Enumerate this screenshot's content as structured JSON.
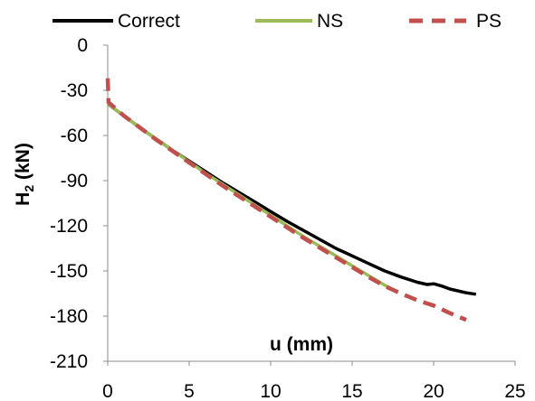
{
  "chart_data": {
    "type": "line",
    "title": "",
    "xlabel": "u (mm)",
    "ylabel_main": "H",
    "ylabel_sub": "2",
    "ylabel_unit": " (kN)",
    "xlim": [
      0,
      25
    ],
    "ylim": [
      -210,
      0
    ],
    "xticks": [
      0,
      5,
      10,
      15,
      20,
      25
    ],
    "yticks": [
      0,
      -30,
      -60,
      -90,
      -120,
      -150,
      -180,
      -210
    ],
    "xtick_labels": [
      "0",
      "5",
      "10",
      "15",
      "20",
      "25"
    ],
    "ytick_labels": [
      "0",
      "-30",
      "-60",
      "-90",
      "-120",
      "-150",
      "-180",
      "-210"
    ],
    "grid": false,
    "legend_position": "top",
    "series": [
      {
        "name": "Correct",
        "color": "#000000",
        "dash": "solid",
        "points": [
          [
            0,
            -39
          ],
          [
            1,
            -47
          ],
          [
            2,
            -55
          ],
          [
            3,
            -62.5
          ],
          [
            4,
            -70
          ],
          [
            5,
            -77
          ],
          [
            6,
            -84
          ],
          [
            7,
            -91
          ],
          [
            8,
            -97.5
          ],
          [
            9,
            -104
          ],
          [
            10,
            -110.5
          ],
          [
            11,
            -117
          ],
          [
            12,
            -123
          ],
          [
            13,
            -129
          ],
          [
            14,
            -135
          ],
          [
            15,
            -140
          ],
          [
            16,
            -145
          ],
          [
            17,
            -150
          ],
          [
            18,
            -154
          ],
          [
            19,
            -157.5
          ],
          [
            19.6,
            -159
          ],
          [
            20,
            -158.5
          ],
          [
            20.5,
            -160
          ],
          [
            21,
            -162
          ],
          [
            22,
            -164.5
          ],
          [
            22.6,
            -165.5
          ]
        ]
      },
      {
        "name": "NS",
        "color": "#9bbb59",
        "dash": "solid",
        "points": [
          [
            0,
            -39
          ],
          [
            1,
            -47
          ],
          [
            2,
            -55
          ],
          [
            3,
            -62.5
          ],
          [
            4,
            -70
          ],
          [
            5,
            -77.5
          ],
          [
            6,
            -85
          ],
          [
            7,
            -92
          ],
          [
            8,
            -99
          ],
          [
            9,
            -106
          ],
          [
            10,
            -113
          ],
          [
            11,
            -120
          ],
          [
            12,
            -127
          ],
          [
            13,
            -133.5
          ],
          [
            14,
            -140
          ],
          [
            15,
            -146.5
          ],
          [
            16,
            -153
          ],
          [
            17,
            -159.5
          ],
          [
            17.5,
            -162.5
          ]
        ]
      },
      {
        "name": "PS",
        "color": "#c0504d",
        "dash": "dashed",
        "points": [
          [
            0,
            -22
          ],
          [
            0.05,
            -38
          ],
          [
            1,
            -47
          ],
          [
            2,
            -55
          ],
          [
            3,
            -63
          ],
          [
            4,
            -70.5
          ],
          [
            5,
            -78
          ],
          [
            6,
            -85.5
          ],
          [
            7,
            -93
          ],
          [
            8,
            -100
          ],
          [
            9,
            -107
          ],
          [
            10,
            -114
          ],
          [
            11,
            -121
          ],
          [
            12,
            -128
          ],
          [
            13,
            -134.5
          ],
          [
            14,
            -141
          ],
          [
            15,
            -147.5
          ],
          [
            16,
            -154
          ],
          [
            17,
            -160
          ],
          [
            18,
            -165
          ],
          [
            19,
            -169.5
          ],
          [
            20,
            -173
          ],
          [
            21,
            -178
          ],
          [
            22,
            -182.5
          ]
        ]
      }
    ]
  }
}
